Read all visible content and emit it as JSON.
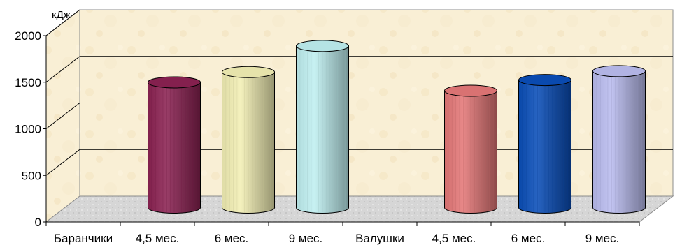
{
  "chart_data": {
    "type": "bar",
    "bar_shape": "cylinder",
    "three_d": true,
    "ylabel": "кДж",
    "ylim": [
      0,
      2000
    ],
    "yticks": [
      0,
      500,
      1000,
      1500,
      2000
    ],
    "grid": true,
    "legend": "none",
    "categories": [
      "Баранчики",
      "4,5 мес.",
      "6 мес.",
      "9 мес.",
      "Валушки",
      "4,5 мес.",
      "6 мес.",
      "9 мес."
    ],
    "values": [
      null,
      1345,
      1455,
      1735,
      null,
      1255,
      1370,
      1465
    ],
    "bar_colors": [
      null,
      "#8B2252",
      "#F2EFB4",
      "#BFEFF0",
      null,
      "#E47878",
      "#0A4EB8",
      "#BABCEF"
    ]
  }
}
